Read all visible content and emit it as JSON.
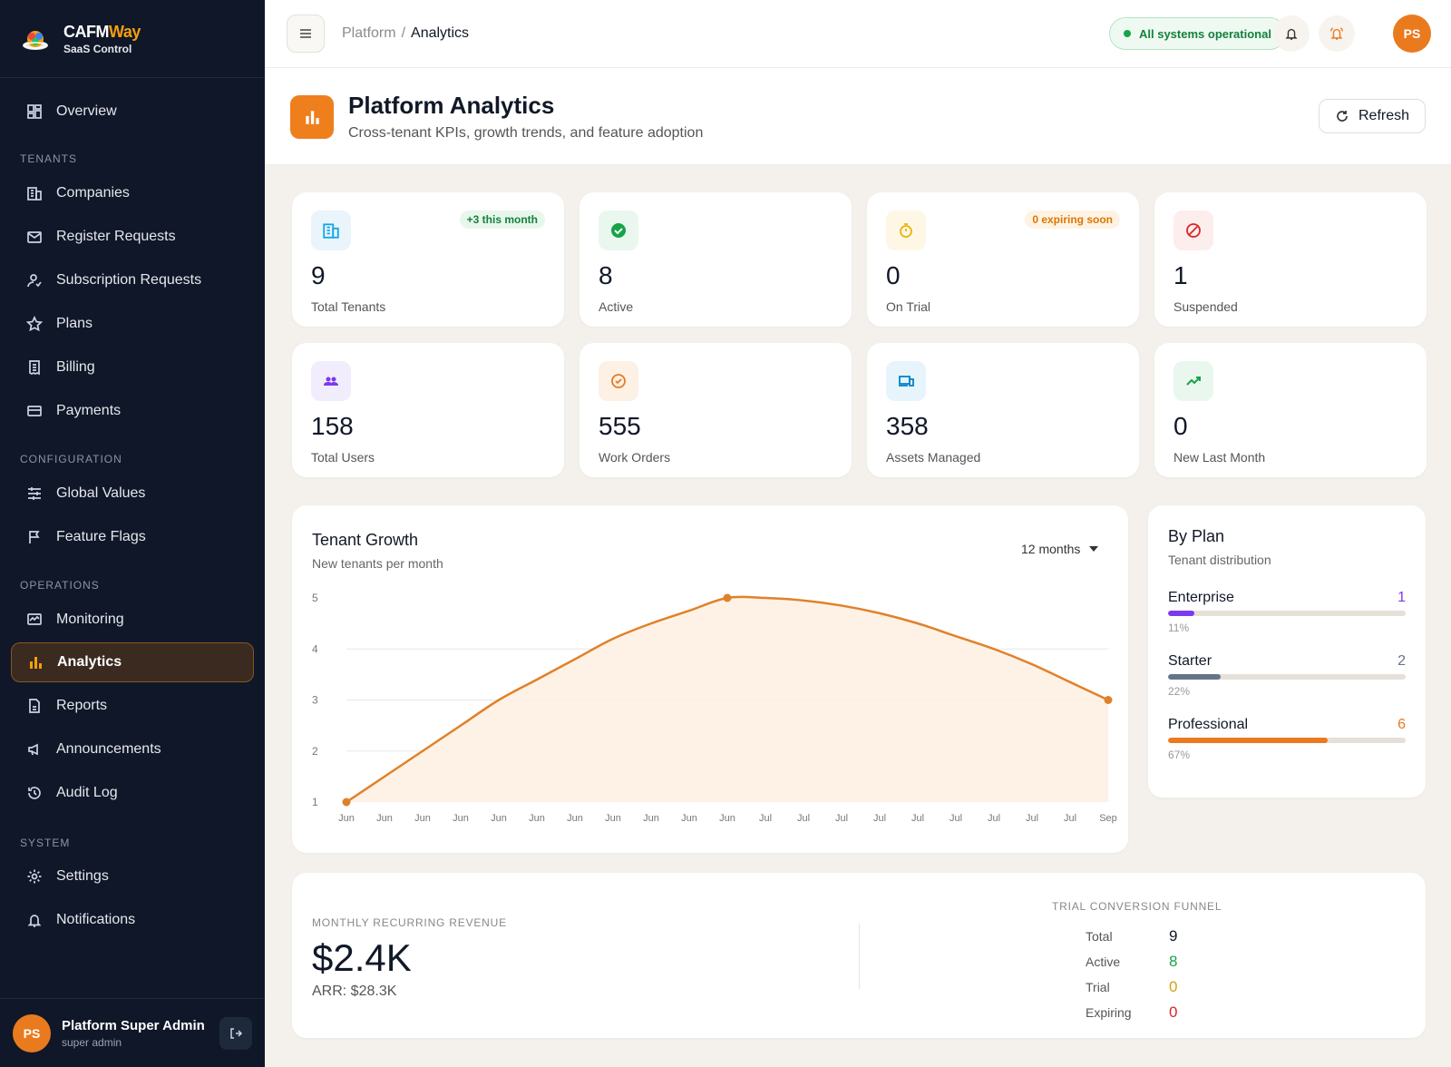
{
  "brand": {
    "name_part1": "CAFM",
    "name_part2": "Way",
    "subtitle": "SaaS Control"
  },
  "sidebar": {
    "items": [
      {
        "label": "Overview",
        "icon": "grid-icon"
      },
      {
        "label": "Companies",
        "icon": "building-icon"
      },
      {
        "label": "Register Requests",
        "icon": "mail-icon"
      },
      {
        "label": "Subscription Requests",
        "icon": "user-check-icon"
      },
      {
        "label": "Plans",
        "icon": "star-icon"
      },
      {
        "label": "Billing",
        "icon": "receipt-icon"
      },
      {
        "label": "Payments",
        "icon": "card-icon"
      },
      {
        "label": "Global Values",
        "icon": "sliders-icon"
      },
      {
        "label": "Feature Flags",
        "icon": "flag-icon"
      },
      {
        "label": "Monitoring",
        "icon": "monitor-icon"
      },
      {
        "label": "Analytics",
        "icon": "bar-chart-icon"
      },
      {
        "label": "Reports",
        "icon": "report-icon"
      },
      {
        "label": "Announcements",
        "icon": "megaphone-icon"
      },
      {
        "label": "Audit Log",
        "icon": "history-icon"
      },
      {
        "label": "Settings",
        "icon": "gear-icon"
      },
      {
        "label": "Notifications",
        "icon": "bell-icon"
      }
    ],
    "sections": {
      "tenants": "TENANTS",
      "configuration": "CONFIGURATION",
      "operations": "OPERATIONS",
      "system": "SYSTEM"
    },
    "active": "Analytics"
  },
  "user": {
    "initials": "PS",
    "name": "Platform Super Admin",
    "role": "super admin"
  },
  "topbar": {
    "breadcrumb_root": "Platform",
    "breadcrumb_sep": "/",
    "breadcrumb_current": "Analytics",
    "status": "All systems operational",
    "avatar_initials": "PS"
  },
  "page": {
    "title": "Platform Analytics",
    "subtitle": "Cross-tenant KPIs, growth trends, and feature adoption",
    "refresh_label": "Refresh"
  },
  "kpis": [
    {
      "value": "9",
      "label": "Total Tenants",
      "badge": "+3 this month",
      "icon": "building-icon"
    },
    {
      "value": "8",
      "label": "Active",
      "icon": "check-circle-icon"
    },
    {
      "value": "0",
      "label": "On Trial",
      "badge": "0 expiring soon",
      "icon": "timer-icon"
    },
    {
      "value": "1",
      "label": "Suspended",
      "icon": "ban-icon"
    },
    {
      "value": "158",
      "label": "Total Users",
      "icon": "users-icon"
    },
    {
      "value": "555",
      "label": "Work Orders",
      "icon": "check-badge-icon"
    },
    {
      "value": "358",
      "label": "Assets Managed",
      "icon": "devices-icon"
    },
    {
      "value": "0",
      "label": "New Last Month",
      "icon": "trending-up-icon"
    }
  ],
  "growth": {
    "title": "Tenant Growth",
    "subtitle": "New tenants per month",
    "range_label": "12 months"
  },
  "chart_data": {
    "type": "area",
    "title": "Tenant Growth",
    "categories": [
      "Jun",
      "Jun",
      "Jun",
      "Jun",
      "Jun",
      "Jun",
      "Jun",
      "Jun",
      "Jun",
      "Jun",
      "Jun",
      "Jul",
      "Jul",
      "Jul",
      "Jul",
      "Jul",
      "Jul",
      "Jul",
      "Jul",
      "Jul",
      "Sep"
    ],
    "series": [
      {
        "values": [
          1,
          1.5,
          2,
          2.5,
          3,
          3.4,
          3.8,
          4.2,
          4.5,
          4.75,
          5,
          5,
          4.95,
          4.85,
          4.7,
          4.5,
          4.25,
          4.0,
          3.7,
          3.35,
          3
        ]
      }
    ],
    "markers": [
      {
        "index": 0,
        "value": 1
      },
      {
        "index": 10,
        "value": 5
      },
      {
        "index": 20,
        "value": 3
      }
    ],
    "yticks": [
      1,
      2,
      3,
      4,
      5
    ],
    "ylim": [
      1,
      5
    ],
    "grid": true,
    "color": "#e0812a"
  },
  "by_plan": {
    "title": "By Plan",
    "subtitle": "Tenant distribution",
    "plans": [
      {
        "name": "Enterprise",
        "count": "1",
        "pct": "11%",
        "fraction": 0.11,
        "color": "#7c3aed"
      },
      {
        "name": "Starter",
        "count": "2",
        "pct": "22%",
        "fraction": 0.22,
        "color": "#64748b"
      },
      {
        "name": "Professional",
        "count": "6",
        "pct": "67%",
        "fraction": 0.67,
        "color": "#ea7a1e"
      }
    ]
  },
  "revenue": {
    "label": "MONTHLY RECURRING REVENUE",
    "mrr": "$2.4K",
    "arr": "ARR: $28.3K"
  },
  "funnel": {
    "label": "TRIAL CONVERSION FUNNEL",
    "rows": [
      {
        "key": "Total",
        "value": "9",
        "color": "#111827"
      },
      {
        "key": "Active",
        "value": "8",
        "color": "#16a34a"
      },
      {
        "key": "Trial",
        "value": "0",
        "color": "#d4a017"
      },
      {
        "key": "Expiring",
        "value": "0",
        "color": "#dc2626"
      }
    ]
  },
  "colors": {
    "accent": "#ea7a1e",
    "sidebar_bg": "#0f1729",
    "page_bg": "#f4f1ec"
  }
}
